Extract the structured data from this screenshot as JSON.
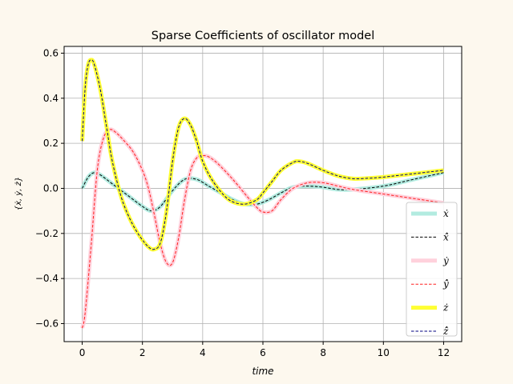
{
  "chart_data": {
    "type": "line",
    "title": "Sparse Coefficients of oscillator model",
    "xlabel": "time",
    "ylabel": "{ẋ, ẏ, ż}",
    "xlim": [
      -0.6,
      12.6
    ],
    "ylim": [
      -0.68,
      0.63
    ],
    "xticks": [
      0,
      2,
      4,
      6,
      8,
      10,
      12
    ],
    "yticks": [
      -0.6,
      -0.4,
      -0.2,
      0.0,
      0.2,
      0.4,
      0.6
    ],
    "grid": true,
    "legend_position": "lower-right",
    "series": [
      {
        "name": "ẋ",
        "color": "#b2ebe0",
        "style": "thick",
        "x": [
          0,
          0.2,
          0.4,
          0.6,
          1.0,
          1.5,
          2.0,
          2.3,
          2.6,
          3.0,
          3.4,
          3.8,
          4.2,
          4.6,
          5.0,
          5.4,
          5.8,
          6.2,
          6.6,
          7.0,
          7.5,
          8.0,
          8.5,
          9.0,
          10.0,
          11.0,
          12.0
        ],
        "y": [
          0.0,
          0.05,
          0.07,
          0.06,
          0.02,
          -0.03,
          -0.08,
          -0.1,
          -0.08,
          -0.01,
          0.04,
          0.04,
          0.01,
          -0.02,
          -0.05,
          -0.07,
          -0.07,
          -0.05,
          -0.02,
          0.005,
          0.01,
          0.005,
          -0.005,
          -0.005,
          0.01,
          0.04,
          0.07
        ]
      },
      {
        "name": "x̂̇",
        "color": "#000000",
        "style": "dashed",
        "x": [
          0,
          0.2,
          0.4,
          0.6,
          1.0,
          1.5,
          2.0,
          2.3,
          2.6,
          3.0,
          3.4,
          3.8,
          4.2,
          4.6,
          5.0,
          5.4,
          5.8,
          6.2,
          6.6,
          7.0,
          7.5,
          8.0,
          8.5,
          9.0,
          10.0,
          11.0,
          12.0
        ],
        "y": [
          0.0,
          0.05,
          0.07,
          0.06,
          0.02,
          -0.03,
          -0.08,
          -0.1,
          -0.08,
          -0.01,
          0.04,
          0.04,
          0.01,
          -0.02,
          -0.05,
          -0.07,
          -0.07,
          -0.05,
          -0.02,
          0.005,
          0.01,
          0.005,
          -0.005,
          -0.005,
          0.01,
          0.04,
          0.07
        ]
      },
      {
        "name": "ẏ",
        "color": "#ffd1dc",
        "style": "thick",
        "x": [
          0,
          0.1,
          0.3,
          0.5,
          0.7,
          0.9,
          1.1,
          1.4,
          1.7,
          2.0,
          2.2,
          2.4,
          2.6,
          2.8,
          3.0,
          3.2,
          3.4,
          3.6,
          3.8,
          4.0,
          4.2,
          4.5,
          5.0,
          5.5,
          5.8,
          6.0,
          6.3,
          6.6,
          7.0,
          7.5,
          8.0,
          8.5,
          9.0,
          10.0,
          11.0,
          12.0
        ],
        "y": [
          -0.62,
          -0.55,
          -0.25,
          0.08,
          0.22,
          0.26,
          0.25,
          0.21,
          0.16,
          0.08,
          0.0,
          -0.12,
          -0.25,
          -0.33,
          -0.33,
          -0.22,
          -0.05,
          0.08,
          0.135,
          0.145,
          0.14,
          0.11,
          0.04,
          -0.04,
          -0.085,
          -0.105,
          -0.1,
          -0.05,
          0.0,
          0.025,
          0.025,
          0.01,
          -0.005,
          -0.025,
          -0.045,
          -0.065
        ]
      },
      {
        "name": "ŷ̇",
        "color": "#ff2020",
        "style": "dashed",
        "x": [
          0,
          0.1,
          0.3,
          0.5,
          0.7,
          0.9,
          1.1,
          1.4,
          1.7,
          2.0,
          2.2,
          2.4,
          2.6,
          2.8,
          3.0,
          3.2,
          3.4,
          3.6,
          3.8,
          4.0,
          4.2,
          4.5,
          5.0,
          5.5,
          5.8,
          6.0,
          6.3,
          6.6,
          7.0,
          7.5,
          8.0,
          8.5,
          9.0,
          10.0,
          11.0,
          12.0
        ],
        "y": [
          -0.62,
          -0.55,
          -0.25,
          0.08,
          0.22,
          0.26,
          0.25,
          0.21,
          0.16,
          0.08,
          0.0,
          -0.12,
          -0.25,
          -0.33,
          -0.33,
          -0.22,
          -0.05,
          0.08,
          0.135,
          0.145,
          0.14,
          0.11,
          0.04,
          -0.04,
          -0.085,
          -0.105,
          -0.1,
          -0.05,
          0.0,
          0.025,
          0.025,
          0.01,
          -0.005,
          -0.025,
          -0.045,
          -0.065
        ]
      },
      {
        "name": "ż",
        "color": "#ffff33",
        "style": "thick",
        "x": [
          0,
          0.1,
          0.2,
          0.3,
          0.4,
          0.6,
          0.8,
          1.0,
          1.3,
          1.6,
          1.9,
          2.2,
          2.4,
          2.6,
          2.8,
          3.0,
          3.2,
          3.4,
          3.6,
          3.8,
          4.0,
          4.3,
          4.7,
          5.0,
          5.4,
          5.8,
          6.0,
          6.3,
          6.6,
          7.0,
          7.2,
          7.5,
          8.0,
          8.5,
          9.0,
          9.5,
          10.0,
          11.0,
          12.0
        ],
        "y": [
          0.21,
          0.45,
          0.55,
          0.57,
          0.55,
          0.44,
          0.28,
          0.12,
          -0.04,
          -0.14,
          -0.21,
          -0.26,
          -0.27,
          -0.24,
          -0.1,
          0.12,
          0.27,
          0.31,
          0.28,
          0.21,
          0.12,
          0.04,
          -0.03,
          -0.06,
          -0.07,
          -0.05,
          -0.02,
          0.03,
          0.08,
          0.115,
          0.12,
          0.11,
          0.08,
          0.055,
          0.043,
          0.045,
          0.05,
          0.065,
          0.08
        ]
      },
      {
        "name": "ẑ̇",
        "color": "#000080",
        "style": "dashed",
        "x": [
          0,
          0.1,
          0.2,
          0.3,
          0.4,
          0.6,
          0.8,
          1.0,
          1.3,
          1.6,
          1.9,
          2.2,
          2.4,
          2.6,
          2.8,
          3.0,
          3.2,
          3.4,
          3.6,
          3.8,
          4.0,
          4.3,
          4.7,
          5.0,
          5.4,
          5.8,
          6.0,
          6.3,
          6.6,
          7.0,
          7.2,
          7.5,
          8.0,
          8.5,
          9.0,
          9.5,
          10.0,
          11.0,
          12.0
        ],
        "y": [
          0.21,
          0.45,
          0.55,
          0.57,
          0.55,
          0.44,
          0.28,
          0.12,
          -0.04,
          -0.14,
          -0.21,
          -0.26,
          -0.27,
          -0.24,
          -0.1,
          0.12,
          0.27,
          0.31,
          0.28,
          0.21,
          0.12,
          0.04,
          -0.03,
          -0.06,
          -0.07,
          -0.05,
          -0.02,
          0.03,
          0.08,
          0.115,
          0.12,
          0.11,
          0.08,
          0.055,
          0.043,
          0.045,
          0.05,
          0.065,
          0.08
        ]
      }
    ]
  }
}
